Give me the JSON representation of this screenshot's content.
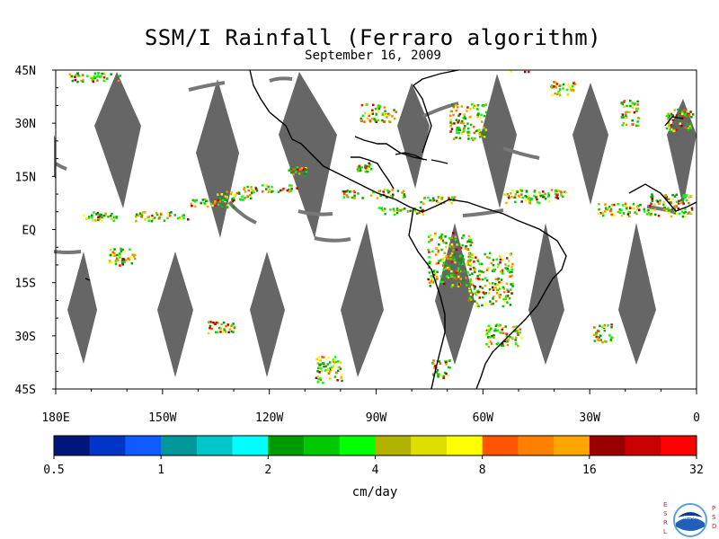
{
  "title": "SSM/I Rainfall (Ferraro algorithm)",
  "subtitle": "September 16, 2009",
  "lat_labels": [
    "45N",
    "30N",
    "15N",
    "EQ",
    "15S",
    "30S",
    "45S"
  ],
  "lon_labels": [
    "180E",
    "150W",
    "120W",
    "90W",
    "60W",
    "30W",
    "0"
  ],
  "colorbar": {
    "colors": [
      "#00177a",
      "#0035c8",
      "#0f5bff",
      "#00979a",
      "#00c8c8",
      "#00ffff",
      "#009b00",
      "#00c800",
      "#00ff00",
      "#b2b200",
      "#dddd00",
      "#ffff00",
      "#ff5500",
      "#ff8000",
      "#ffa500",
      "#9b0000",
      "#c80000",
      "#ff0000"
    ],
    "tick_labels": [
      "0.5",
      "1",
      "2",
      "4",
      "8",
      "16",
      "32"
    ],
    "units": "cm/day"
  },
  "logo": {
    "left_letters": [
      "E",
      "S",
      "R",
      "L"
    ],
    "right_letters": [
      "P",
      "S",
      "D"
    ],
    "agency": "NOAA"
  }
}
